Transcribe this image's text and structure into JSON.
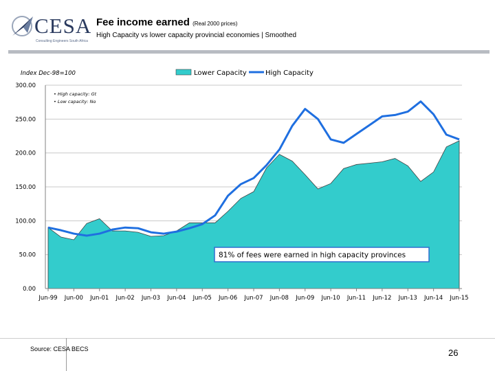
{
  "header": {
    "logo_text": "CESA",
    "logo_tagline": "Consulting Engineers South Africa",
    "title": "Fee income earned",
    "title_suffix": "(Real 2000 prices)",
    "subtitle": "High Capacity vs lower capacity provincial economies | Smoothed"
  },
  "footer": {
    "source": "Source: CESA BECS",
    "page_number": "26"
  },
  "colors": {
    "area_fill": "#33cccc",
    "area_stroke": "#404040",
    "line": "#1f6fe0",
    "grid": "#c8c8c8",
    "annotation_border": "#2f6fd0"
  },
  "chart_data": {
    "type": "area",
    "ylabel": "Index Dec-98=100",
    "ylim": [
      0,
      300
    ],
    "yticks": [
      "0.00",
      "50.00",
      "100.00",
      "150.00",
      "200.00",
      "250.00",
      "300.00"
    ],
    "xtick_labels": [
      "Jun-99",
      "Jun-00",
      "Jun-01",
      "Jun-02",
      "Jun-03",
      "Jun-04",
      "Jun-05",
      "Jun-06",
      "Jun-07",
      "Jun-08",
      "Jun-09",
      "Jun-10",
      "Jun-11",
      "Jun-12",
      "Jun-13",
      "Jun-14",
      "Jun-15"
    ],
    "legend": "top-center",
    "grid": "horizontal",
    "notes": [
      "• High capacity: Gt",
      "• Low capacity: No"
    ],
    "annotation": "81% of fees were earned in high capacity provinces",
    "x": [
      "Jun-99",
      "Dec-99",
      "Jun-00",
      "Dec-00",
      "Jun-01",
      "Dec-01",
      "Jun-02",
      "Dec-02",
      "Jun-03",
      "Dec-03",
      "Jun-04",
      "Dec-04",
      "Jun-05",
      "Dec-05",
      "Jun-06",
      "Dec-06",
      "Jun-07",
      "Dec-07",
      "Jun-08",
      "Dec-08",
      "Jun-09",
      "Dec-09",
      "Jun-10",
      "Dec-10",
      "Jun-11",
      "Dec-11",
      "Jun-12",
      "Dec-12",
      "Jun-13",
      "Dec-13",
      "Jun-14",
      "Dec-14",
      "Jun-15"
    ],
    "series": [
      {
        "name": "Lower Capacity",
        "style": "area",
        "values": [
          90,
          76,
          72,
          96,
          103,
          85,
          85,
          83,
          77,
          78,
          85,
          97,
          97,
          97,
          114,
          133,
          143,
          178,
          198,
          188,
          168,
          147,
          155,
          177,
          183,
          185,
          187,
          192,
          181,
          158,
          172,
          209,
          218
        ]
      },
      {
        "name": "High Capacity",
        "style": "line",
        "values": [
          90,
          86,
          81,
          78,
          81,
          87,
          90,
          89,
          83,
          81,
          84,
          89,
          95,
          108,
          137,
          154,
          163,
          182,
          205,
          240,
          265,
          250,
          220,
          215,
          228,
          241,
          254,
          256,
          261,
          276,
          257,
          227,
          220
        ]
      }
    ]
  }
}
